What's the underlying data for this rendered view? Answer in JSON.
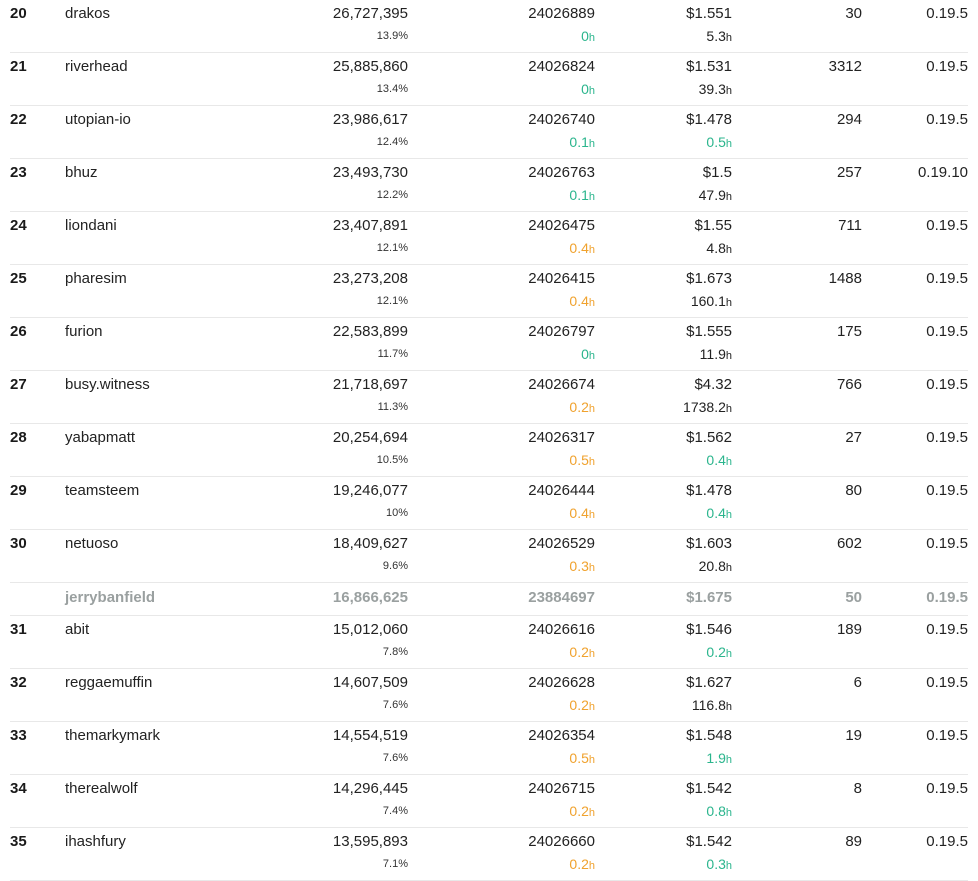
{
  "colors": {
    "green": "#2bb58d",
    "orange": "#f0a22e",
    "disabled": "#9aa0a0"
  },
  "unit_suffix": "h",
  "rows": [
    {
      "rank": "20",
      "name": "drakos",
      "votes": "26,727,395",
      "pct": "13.9%",
      "block": "24026889",
      "miss": "0",
      "miss_color": "green",
      "price": "$1.551",
      "price_age": "5.3",
      "price_color": "dark",
      "count": "30",
      "version": "0.19.5"
    },
    {
      "rank": "21",
      "name": "riverhead",
      "votes": "25,885,860",
      "pct": "13.4%",
      "block": "24026824",
      "miss": "0",
      "miss_color": "green",
      "price": "$1.531",
      "price_age": "39.3",
      "price_color": "dark",
      "count": "3312",
      "version": "0.19.5"
    },
    {
      "rank": "22",
      "name": "utopian-io",
      "votes": "23,986,617",
      "pct": "12.4%",
      "block": "24026740",
      "miss": "0.1",
      "miss_color": "green",
      "price": "$1.478",
      "price_age": "0.5",
      "price_color": "green",
      "count": "294",
      "version": "0.19.5"
    },
    {
      "rank": "23",
      "name": "bhuz",
      "votes": "23,493,730",
      "pct": "12.2%",
      "block": "24026763",
      "miss": "0.1",
      "miss_color": "green",
      "price": "$1.5",
      "price_age": "47.9",
      "price_color": "dark",
      "count": "257",
      "version": "0.19.10"
    },
    {
      "rank": "24",
      "name": "liondani",
      "votes": "23,407,891",
      "pct": "12.1%",
      "block": "24026475",
      "miss": "0.4",
      "miss_color": "orange",
      "price": "$1.55",
      "price_age": "4.8",
      "price_color": "dark",
      "count": "711",
      "version": "0.19.5"
    },
    {
      "rank": "25",
      "name": "pharesim",
      "votes": "23,273,208",
      "pct": "12.1%",
      "block": "24026415",
      "miss": "0.4",
      "miss_color": "orange",
      "price": "$1.673",
      "price_age": "160.1",
      "price_color": "dark",
      "count": "1488",
      "version": "0.19.5"
    },
    {
      "rank": "26",
      "name": "furion",
      "votes": "22,583,899",
      "pct": "11.7%",
      "block": "24026797",
      "miss": "0",
      "miss_color": "green",
      "price": "$1.555",
      "price_age": "11.9",
      "price_color": "dark",
      "count": "175",
      "version": "0.19.5"
    },
    {
      "rank": "27",
      "name": "busy.witness",
      "votes": "21,718,697",
      "pct": "11.3%",
      "block": "24026674",
      "miss": "0.2",
      "miss_color": "orange",
      "price": "$4.32",
      "price_age": "1738.2",
      "price_color": "dark",
      "count": "766",
      "version": "0.19.5"
    },
    {
      "rank": "28",
      "name": "yabapmatt",
      "votes": "20,254,694",
      "pct": "10.5%",
      "block": "24026317",
      "miss": "0.5",
      "miss_color": "orange",
      "price": "$1.562",
      "price_age": "0.4",
      "price_color": "green",
      "count": "27",
      "version": "0.19.5"
    },
    {
      "rank": "29",
      "name": "teamsteem",
      "votes": "19,246,077",
      "pct": "10%",
      "block": "24026444",
      "miss": "0.4",
      "miss_color": "orange",
      "price": "$1.478",
      "price_age": "0.4",
      "price_color": "green",
      "count": "80",
      "version": "0.19.5"
    },
    {
      "rank": "30",
      "name": "netuoso",
      "votes": "18,409,627",
      "pct": "9.6%",
      "block": "24026529",
      "miss": "0.3",
      "miss_color": "orange",
      "price": "$1.603",
      "price_age": "20.8",
      "price_color": "dark",
      "count": "602",
      "version": "0.19.5"
    },
    {
      "rank": "",
      "name": "jerrybanfield",
      "votes": "16,866,625",
      "pct": "",
      "block": "23884697",
      "miss": "",
      "miss_color": "",
      "price": "$1.675",
      "price_age": "",
      "price_color": "",
      "count": "50",
      "version": "0.19.5",
      "disabled": true
    },
    {
      "rank": "31",
      "name": "abit",
      "votes": "15,012,060",
      "pct": "7.8%",
      "block": "24026616",
      "miss": "0.2",
      "miss_color": "orange",
      "price": "$1.546",
      "price_age": "0.2",
      "price_color": "green",
      "count": "189",
      "version": "0.19.5"
    },
    {
      "rank": "32",
      "name": "reggaemuffin",
      "votes": "14,607,509",
      "pct": "7.6%",
      "block": "24026628",
      "miss": "0.2",
      "miss_color": "orange",
      "price": "$1.627",
      "price_age": "116.8",
      "price_color": "dark",
      "count": "6",
      "version": "0.19.5"
    },
    {
      "rank": "33",
      "name": "themarkymark",
      "votes": "14,554,519",
      "pct": "7.6%",
      "block": "24026354",
      "miss": "0.5",
      "miss_color": "orange",
      "price": "$1.548",
      "price_age": "1.9",
      "price_color": "green",
      "count": "19",
      "version": "0.19.5"
    },
    {
      "rank": "34",
      "name": "therealwolf",
      "votes": "14,296,445",
      "pct": "7.4%",
      "block": "24026715",
      "miss": "0.2",
      "miss_color": "orange",
      "price": "$1.542",
      "price_age": "0.8",
      "price_color": "green",
      "count": "8",
      "version": "0.19.5"
    },
    {
      "rank": "35",
      "name": "ihashfury",
      "votes": "13,595,893",
      "pct": "7.1%",
      "block": "24026660",
      "miss": "0.2",
      "miss_color": "orange",
      "price": "$1.542",
      "price_age": "0.3",
      "price_color": "green",
      "count": "89",
      "version": "0.19.5"
    }
  ]
}
